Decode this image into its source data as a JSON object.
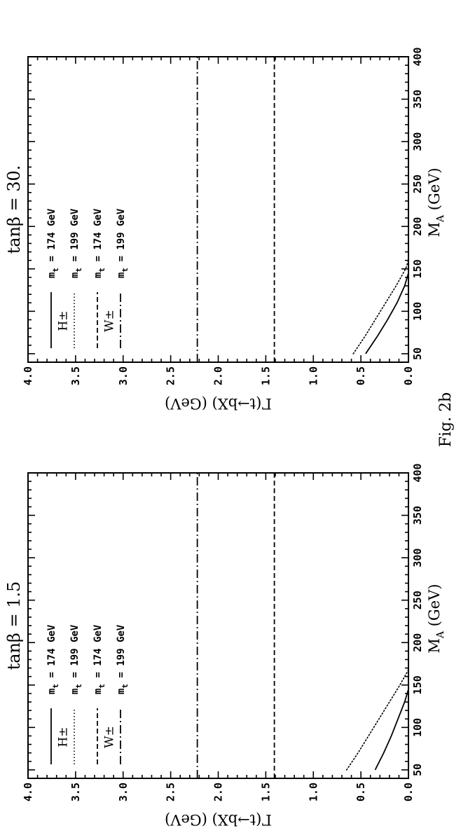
{
  "figure_label": "Fig. 2b",
  "panels_labels": [
    {
      "title": "tanβ = 1.5"
    },
    {
      "title": "tanβ = 30."
    }
  ],
  "legend": {
    "groups": [
      {
        "symbol": "H±",
        "entries": [
          {
            "label": "m",
            "sub": "t",
            "text": " = 174 GeV",
            "style": "solid"
          },
          {
            "label": "m",
            "sub": "t",
            "text": " = 199 GeV",
            "style": "dotted"
          }
        ]
      },
      {
        "symbol": "W±",
        "entries": [
          {
            "label": "m",
            "sub": "t",
            "text": " = 174 GeV",
            "style": "dashed"
          },
          {
            "label": "m",
            "sub": "t",
            "text": " = 199 GeV",
            "style": "dashdot"
          }
        ]
      }
    ]
  },
  "chart_data": [
    {
      "type": "line",
      "title": "tanβ = 1.5",
      "xlabel": "M_A (GeV)",
      "ylabel": "Γ(t→bX) (GeV)",
      "xlim": [
        40,
        400
      ],
      "ylim": [
        0,
        4.0
      ],
      "xticks": [
        "50",
        "100",
        "150",
        "200",
        "250",
        "300",
        "350",
        "400"
      ],
      "yticks": [
        "0.0",
        "0.5",
        "1.0",
        "1.5",
        "2.0",
        "2.5",
        "3.0",
        "3.5",
        "4.0"
      ],
      "series": [
        {
          "name": "H± m_t = 174 GeV",
          "style": "solid",
          "x": [
            50,
            70,
            90,
            110,
            130,
            145
          ],
          "y": [
            0.35,
            0.26,
            0.18,
            0.11,
            0.04,
            0.0
          ]
        },
        {
          "name": "H± m_t = 199 GeV",
          "style": "dotted",
          "x": [
            50,
            70,
            90,
            110,
            130,
            150,
            168
          ],
          "y": [
            0.65,
            0.53,
            0.42,
            0.31,
            0.2,
            0.09,
            0.0
          ]
        },
        {
          "name": "W± m_t = 174 GeV",
          "style": "dashed",
          "x": [
            40,
            400
          ],
          "y": [
            1.41,
            1.41
          ]
        },
        {
          "name": "W± m_t = 199 GeV",
          "style": "dashdot",
          "x": [
            40,
            400
          ],
          "y": [
            2.22,
            2.22
          ]
        }
      ]
    },
    {
      "type": "line",
      "title": "tanβ = 30.",
      "xlabel": "M_A (GeV)",
      "ylabel": "Γ(t→bX) (GeV)",
      "xlim": [
        40,
        400
      ],
      "ylim": [
        0,
        4.0
      ],
      "xticks": [
        "50",
        "100",
        "150",
        "200",
        "250",
        "300",
        "350",
        "400"
      ],
      "yticks": [
        "0.0",
        "0.5",
        "1.0",
        "1.5",
        "2.0",
        "2.5",
        "3.0",
        "3.5",
        "4.0"
      ],
      "series": [
        {
          "name": "H± m_t = 174 GeV",
          "style": "solid",
          "x": [
            50,
            70,
            90,
            110,
            130,
            145
          ],
          "y": [
            0.45,
            0.33,
            0.22,
            0.12,
            0.04,
            0.0
          ]
        },
        {
          "name": "H± m_t = 199 GeV",
          "style": "dotted",
          "x": [
            50,
            70,
            90,
            110,
            130,
            150,
            160
          ],
          "y": [
            0.58,
            0.46,
            0.35,
            0.24,
            0.13,
            0.03,
            0.0
          ]
        },
        {
          "name": "W± m_t = 174 GeV",
          "style": "dashed",
          "x": [
            40,
            400
          ],
          "y": [
            1.41,
            1.41
          ]
        },
        {
          "name": "W± m_t = 199 GeV",
          "style": "dashdot",
          "x": [
            40,
            400
          ],
          "y": [
            2.22,
            2.22
          ]
        }
      ]
    }
  ]
}
